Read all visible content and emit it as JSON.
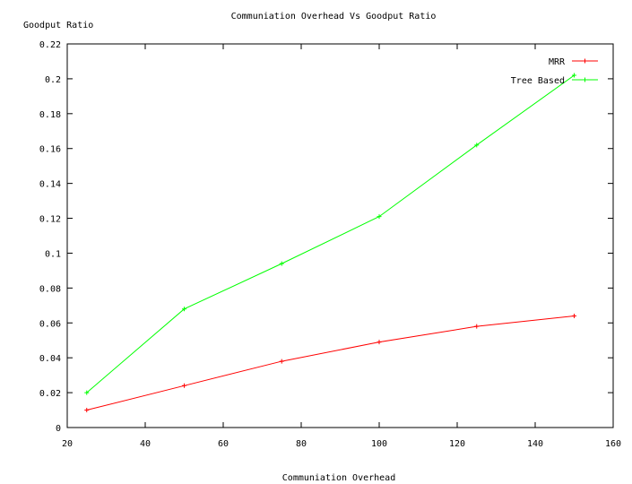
{
  "chart_data": {
    "type": "line",
    "title": "Communiation Overhead Vs Goodput Ratio",
    "xlabel": "Communiation Overhead",
    "ylabel": "Goodput Ratio",
    "xlim": [
      20,
      160
    ],
    "ylim": [
      0,
      0.22
    ],
    "x_ticks": [
      "20",
      "40",
      "60",
      "80",
      "100",
      "120",
      "140",
      "160"
    ],
    "y_ticks": [
      "0",
      "0.02",
      "0.04",
      "0.06",
      "0.08",
      "0.1",
      "0.12",
      "0.14",
      "0.16",
      "0.18",
      "0.2",
      "0.22"
    ],
    "legend_position": "top-right",
    "grid": false,
    "series": [
      {
        "name": "MRR",
        "color": "#ff0000",
        "x": [
          25,
          50,
          75,
          100,
          125,
          150
        ],
        "values": [
          0.01,
          0.024,
          0.038,
          0.049,
          0.058,
          0.064
        ]
      },
      {
        "name": "Tree Based",
        "color": "#00ff00",
        "x": [
          25,
          50,
          75,
          100,
          125,
          150
        ],
        "values": [
          0.02,
          0.068,
          0.094,
          0.121,
          0.162,
          0.202
        ]
      }
    ]
  }
}
